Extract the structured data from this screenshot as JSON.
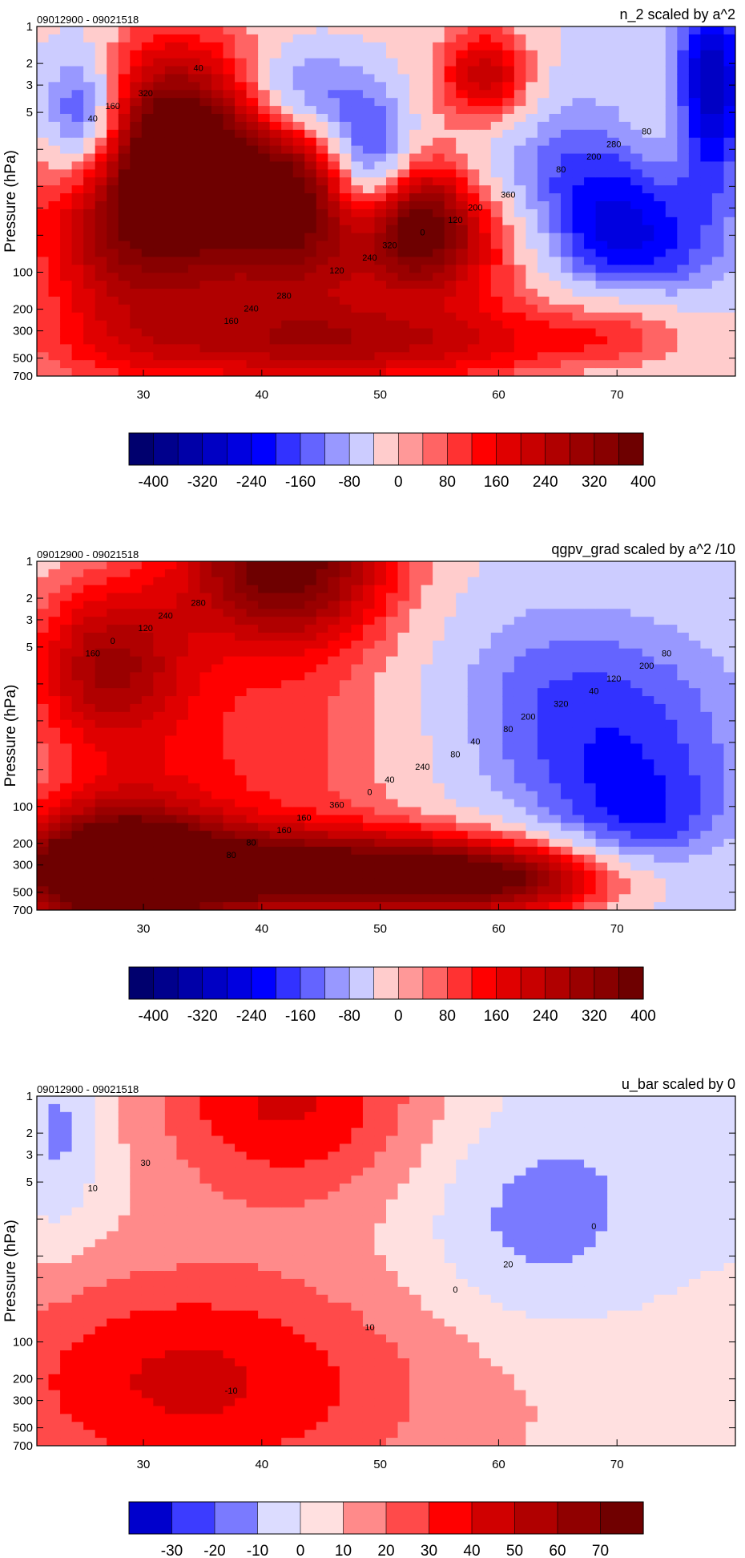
{
  "chart_data": [
    {
      "type": "heatmap",
      "title": "n_2 scaled by a^2",
      "subtitle": "09012900 - 09021518",
      "xlabel": "",
      "ylabel": "Pressure (hPa)",
      "xlim": [
        21,
        80
      ],
      "x_ticks": [
        30,
        40,
        50,
        60,
        70
      ],
      "y_scale": "log",
      "ylim": [
        700,
        1
      ],
      "y_ticks": [
        1,
        2,
        3,
        5,
        10,
        20,
        30,
        50,
        100,
        200,
        300,
        500,
        700
      ],
      "y_tick_labels": [
        "1",
        "2",
        "3",
        "5",
        "",
        "",
        "",
        "",
        "100",
        "200",
        "300",
        "500",
        "700"
      ],
      "contour_labels": [
        "40",
        "120",
        "160",
        "200",
        "240",
        "320",
        "360",
        "280",
        "80",
        "0",
        "40",
        "80",
        "120",
        "160",
        "200",
        "240",
        "280",
        "320"
      ],
      "colorbar": {
        "tick_labels": [
          "-400",
          "-320",
          "-240",
          "-160",
          "-80",
          "0",
          "80",
          "160",
          "240",
          "320",
          "400"
        ],
        "colors": [
          "#00006e",
          "#00008c",
          "#0000a8",
          "#0000c4",
          "#0000e0",
          "#0000ff",
          "#3232ff",
          "#6464ff",
          "#9898ff",
          "#ccccff",
          "#ffcccc",
          "#ff9898",
          "#ff6464",
          "#ff3232",
          "#ff0000",
          "#e00000",
          "#c80000",
          "#b00000",
          "#9a0000",
          "#880000",
          "#6e0000"
        ]
      }
    },
    {
      "type": "heatmap",
      "title": "qgpv_grad scaled by a^2 /10",
      "subtitle": "09012900 - 09021518",
      "xlabel": "",
      "ylabel": "Pressure (hPa)",
      "xlim": [
        21,
        80
      ],
      "x_ticks": [
        30,
        40,
        50,
        60,
        70
      ],
      "y_scale": "log",
      "ylim": [
        700,
        1
      ],
      "y_ticks": [
        1,
        2,
        3,
        5,
        10,
        20,
        30,
        50,
        100,
        200,
        300,
        500,
        700
      ],
      "y_tick_labels": [
        "1",
        "2",
        "3",
        "5",
        "",
        "",
        "",
        "",
        "100",
        "200",
        "300",
        "500",
        "700"
      ],
      "contour_labels": [
        "160",
        "80",
        "80",
        "40",
        "0",
        "120",
        "80",
        "160",
        "200",
        "240",
        "280",
        "320",
        "360",
        "0",
        "40",
        "80",
        "120",
        "40",
        "240",
        "200",
        "160",
        "80"
      ],
      "colorbar": {
        "tick_labels": [
          "-400",
          "-320",
          "-240",
          "-160",
          "-80",
          "0",
          "80",
          "160",
          "240",
          "320",
          "400"
        ],
        "colors": [
          "#00006e",
          "#00008c",
          "#0000a8",
          "#0000c4",
          "#0000e0",
          "#0000ff",
          "#3232ff",
          "#6464ff",
          "#9898ff",
          "#ccccff",
          "#ffcccc",
          "#ff9898",
          "#ff6464",
          "#ff3232",
          "#ff0000",
          "#e00000",
          "#c80000",
          "#b00000",
          "#9a0000",
          "#880000",
          "#6e0000"
        ]
      }
    },
    {
      "type": "heatmap",
      "title": "u_bar scaled by 0",
      "subtitle": "09012900 - 09021518",
      "xlabel": "",
      "ylabel": "Pressure (hPa)",
      "xlim": [
        21,
        80
      ],
      "x_ticks": [
        30,
        40,
        50,
        60,
        70
      ],
      "y_scale": "log",
      "ylim": [
        700,
        1
      ],
      "y_ticks": [
        1,
        2,
        3,
        5,
        10,
        20,
        30,
        50,
        100,
        200,
        300,
        500,
        700
      ],
      "y_tick_labels": [
        "1",
        "2",
        "3",
        "5",
        "",
        "",
        "",
        "",
        "100",
        "200",
        "300",
        "500",
        "700"
      ],
      "contour_labels": [
        "10",
        "0",
        "-10",
        "0",
        "10",
        "30",
        "20"
      ],
      "colorbar": {
        "tick_labels": [
          "-30",
          "-20",
          "-10",
          "0",
          "10",
          "20",
          "30",
          "40",
          "50",
          "60",
          "70"
        ],
        "colors": [
          "#0000cc",
          "#3c3cff",
          "#7a7aff",
          "#dcdcff",
          "#ffe0e0",
          "#ff8a8a",
          "#ff4a4a",
          "#ff0000",
          "#d00000",
          "#b00000",
          "#900000",
          "#700000"
        ]
      }
    }
  ]
}
